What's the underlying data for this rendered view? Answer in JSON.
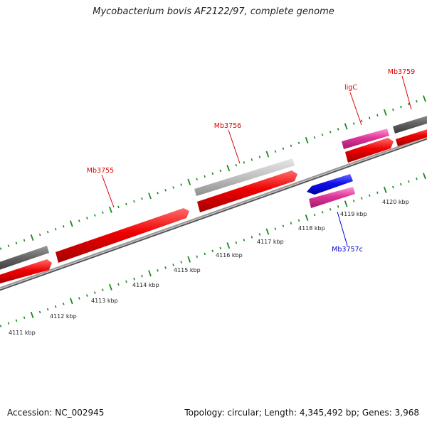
{
  "title": "Mycobacterium bovis AF2122/97, complete genome",
  "footer": {
    "accession": "Accession: NC_002945",
    "summary": "Topology: circular; Length: 4,345,492 bp; Genes: 3,968"
  },
  "scale_labels": [
    "4111 kbp",
    "4112 kbp",
    "4113 kbp",
    "4114 kbp",
    "4115 kbp",
    "4116 kbp",
    "4117 kbp",
    "4118 kbp",
    "4119 kbp",
    "4120 kbp"
  ],
  "gene_labels": {
    "mb3755": "Mb3755",
    "mb3756": "Mb3756",
    "ligc": "ligC",
    "mb3759": "Mb3759",
    "mb3757c": "Mb3757c"
  },
  "colors": {
    "forward_gene": "#ee0000",
    "reverse_gene": "#1010ee",
    "pseudo_gene": "#e0359a",
    "feature_gray": "#bbbbbb",
    "feature_dark": "#666666",
    "tick_green": "#1a8a1a",
    "backbone": "#888888",
    "label_red": "#dd0000",
    "label_blue": "#0000cc"
  }
}
